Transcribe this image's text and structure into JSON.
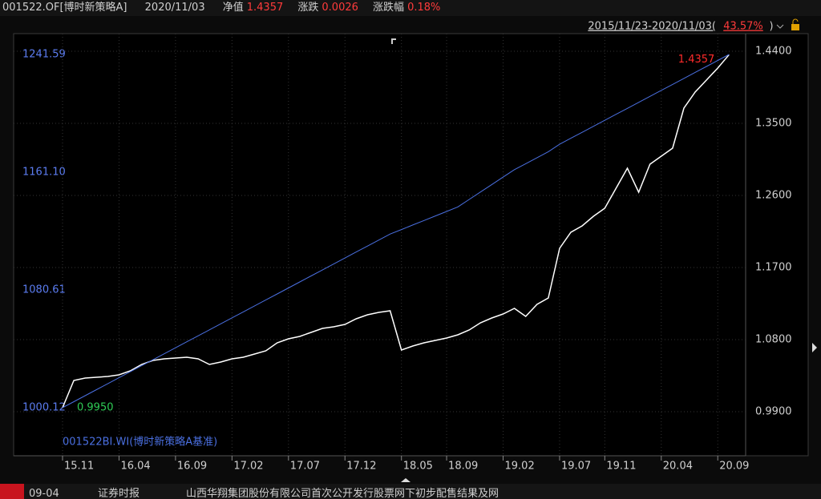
{
  "header": {
    "fund": "001522.OF[博时新策略A]",
    "date": "2020/11/03",
    "nav_label": "净值",
    "nav": "1.4357",
    "change_label": "涨跌",
    "change": "0.0026",
    "pct_label": "涨跌幅",
    "pct": "0.18%",
    "period": [
      "2015/11/23-2020/11/03(",
      "43.57%",
      ")"
    ]
  },
  "chart_data": {
    "type": "line",
    "grid": true,
    "legend": "bottom-left",
    "categories": [
      "15.11",
      null,
      null,
      null,
      null,
      "16.04",
      null,
      null,
      null,
      null,
      "16.09",
      null,
      null,
      null,
      null,
      "17.02",
      null,
      null,
      null,
      null,
      "17.07",
      null,
      null,
      null,
      null,
      "17.12",
      null,
      null,
      null,
      null,
      "18.05",
      null,
      null,
      null,
      "18.09",
      null,
      null,
      null,
      null,
      "19.02",
      null,
      null,
      null,
      null,
      "19.07",
      null,
      null,
      null,
      "19.11",
      null,
      null,
      null,
      null,
      "20.04",
      null,
      null,
      null,
      null,
      "20.09",
      null
    ],
    "ylim": [
      0.939,
      1.464
    ],
    "yticks": [
      {
        "value": 1.44,
        "label": "1.4400"
      },
      {
        "value": 1.35,
        "label": "1.3500"
      },
      {
        "value": 1.26,
        "label": "1.2600"
      },
      {
        "value": 1.17,
        "label": "1.1700"
      },
      {
        "value": 1.08,
        "label": "1.0800"
      },
      {
        "value": 0.99,
        "label": "0.9900"
      }
    ],
    "y2lim": [
      969.43,
      1256.92
    ],
    "y2ticks": [
      1241.59,
      {
        "value": 1161.1,
        "label": "1161.10"
      },
      1080.61,
      1000.12
    ],
    "series": [
      {
        "color": "#ffffff",
        "values": [
          0.995,
          1.029,
          1.032,
          1.033,
          1.034,
          1.036,
          1.041,
          1.049,
          1.054,
          1.056,
          1.057,
          1.058,
          1.056,
          1.049,
          1.052,
          1.056,
          1.058,
          1.062,
          1.066,
          1.076,
          1.081,
          1.084,
          1.089,
          1.094,
          1.096,
          1.099,
          1.106,
          1.111,
          1.114,
          1.116,
          1.067,
          1.072,
          1.076,
          1.079,
          1.082,
          1.086,
          1.092,
          1.101,
          1.107,
          1.112,
          1.119,
          1.109,
          1.124,
          1.132,
          1.194,
          1.214,
          1.222,
          1.234,
          1.244,
          1.269,
          1.294,
          1.264,
          1.299,
          1.309,
          1.319,
          1.369,
          1.389,
          1.404,
          1.419,
          1.4357
        ],
        "value_labels": [
          "0.9950",
          null,
          null,
          null,
          null,
          null,
          null,
          null,
          null,
          null,
          null,
          null,
          null,
          null,
          null,
          null,
          null,
          null,
          null,
          null,
          null,
          null,
          null,
          null,
          null,
          null,
          null,
          null,
          null,
          null,
          null,
          null,
          null,
          null,
          null,
          null,
          null,
          null,
          null,
          null,
          null,
          null,
          null,
          null,
          null,
          null,
          null,
          null,
          null,
          null,
          null,
          null,
          null,
          null,
          null,
          null,
          null,
          null,
          null,
          "1.4357"
        ]
      },
      {
        "name": "001522BI.WI(博时新策略A基准)",
        "color": "#4a6fe0",
        "axis": "y2",
        "values": [
          1000.12,
          1004.21,
          1008.31,
          1012.4,
          1016.49,
          1020.58,
          1024.68,
          1028.77,
          1032.86,
          1036.95,
          1041.05,
          1045.14,
          1049.23,
          1053.32,
          1057.42,
          1061.51,
          1065.6,
          1069.7,
          1073.79,
          1077.88,
          1081.97,
          1086.07,
          1090.16,
          1094.25,
          1098.34,
          1102.44,
          1106.53,
          1110.62,
          1114.71,
          1118.81,
          1121.9,
          1124.99,
          1128.08,
          1131.18,
          1134.27,
          1137.36,
          1142.46,
          1147.55,
          1152.64,
          1157.73,
          1162.83,
          1166.92,
          1171.01,
          1175.1,
          1180.2,
          1184.29,
          1188.38,
          1192.47,
          1196.57,
          1200.66,
          1204.75,
          1208.84,
          1212.94,
          1217.03,
          1221.12,
          1225.21,
          1229.31,
          1233.4,
          1237.49,
          1241.59
        ]
      }
    ]
  },
  "ticker": {
    "date": "09-04",
    "source": "证券时报",
    "headline": "山西华翔集团股份有限公司首次公开发行股票网下初步配售结果及网"
  }
}
